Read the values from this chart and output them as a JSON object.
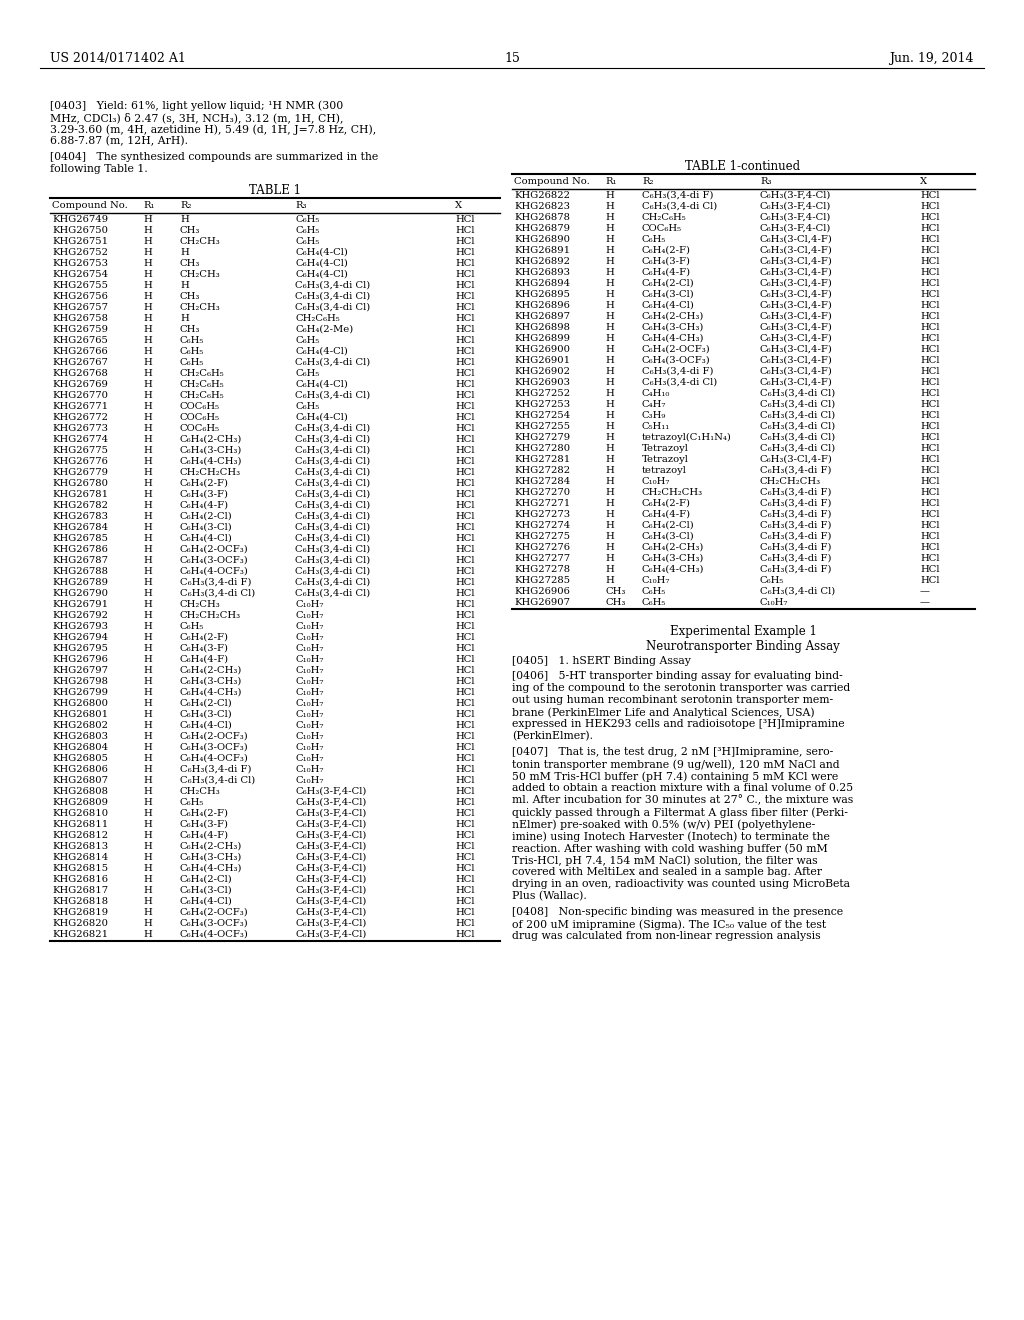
{
  "bg_color": "#ffffff",
  "header_left": "US 2014/0171402 A1",
  "header_right": "Jun. 19, 2014",
  "page_number": "15",
  "table1_title": "TABLE 1",
  "table1_headers": [
    "Compound No.",
    "R₁",
    "R₂",
    "R₃",
    "X"
  ],
  "table1_rows": [
    [
      "KHG26749",
      "H",
      "H",
      "C₆H₅",
      "HCl"
    ],
    [
      "KHG26750",
      "H",
      "CH₃",
      "C₆H₅",
      "HCl"
    ],
    [
      "KHG26751",
      "H",
      "CH₂CH₃",
      "C₆H₅",
      "HCl"
    ],
    [
      "KHG26752",
      "H",
      "H",
      "C₆H₄(4-Cl)",
      "HCl"
    ],
    [
      "KHG26753",
      "H",
      "CH₃",
      "C₆H₄(4-Cl)",
      "HCl"
    ],
    [
      "KHG26754",
      "H",
      "CH₂CH₃",
      "C₆H₄(4-Cl)",
      "HCl"
    ],
    [
      "KHG26755",
      "H",
      "H",
      "C₆H₃(3,4-di Cl)",
      "HCl"
    ],
    [
      "KHG26756",
      "H",
      "CH₃",
      "C₆H₃(3,4-di Cl)",
      "HCl"
    ],
    [
      "KHG26757",
      "H",
      "CH₂CH₃",
      "C₆H₃(3,4-di Cl)",
      "HCl"
    ],
    [
      "KHG26758",
      "H",
      "H",
      "CH₂C₆H₅",
      "HCl"
    ],
    [
      "KHG26759",
      "H",
      "CH₃",
      "C₆H₄(2-Me)",
      "HCl"
    ],
    [
      "KHG26765",
      "H",
      "C₆H₅",
      "C₆H₅",
      "HCl"
    ],
    [
      "KHG26766",
      "H",
      "C₆H₅",
      "C₆H₄(4-Cl)",
      "HCl"
    ],
    [
      "KHG26767",
      "H",
      "C₆H₅",
      "C₆H₃(3,4-di Cl)",
      "HCl"
    ],
    [
      "KHG26768",
      "H",
      "CH₂C₆H₅",
      "C₆H₅",
      "HCl"
    ],
    [
      "KHG26769",
      "H",
      "CH₂C₆H₅",
      "C₆H₄(4-Cl)",
      "HCl"
    ],
    [
      "KHG26770",
      "H",
      "CH₂C₆H₅",
      "C₆H₃(3,4-di Cl)",
      "HCl"
    ],
    [
      "KHG26771",
      "H",
      "COC₆H₅",
      "C₆H₅",
      "HCl"
    ],
    [
      "KHG26772",
      "H",
      "COC₆H₅",
      "C₆H₄(4-Cl)",
      "HCl"
    ],
    [
      "KHG26773",
      "H",
      "COC₆H₅",
      "C₆H₃(3,4-di Cl)",
      "HCl"
    ],
    [
      "KHG26774",
      "H",
      "C₆H₄(2-CH₃)",
      "C₆H₃(3,4-di Cl)",
      "HCl"
    ],
    [
      "KHG26775",
      "H",
      "C₆H₄(3-CH₃)",
      "C₆H₃(3,4-di Cl)",
      "HCl"
    ],
    [
      "KHG26776",
      "H",
      "C₆H₄(4-CH₃)",
      "C₆H₃(3,4-di Cl)",
      "HCl"
    ],
    [
      "KHG26779",
      "H",
      "CH₂CH₂CH₃",
      "C₆H₃(3,4-di Cl)",
      "HCl"
    ],
    [
      "KHG26780",
      "H",
      "C₆H₄(2-F)",
      "C₆H₃(3,4-di Cl)",
      "HCl"
    ],
    [
      "KHG26781",
      "H",
      "C₆H₄(3-F)",
      "C₆H₃(3,4-di Cl)",
      "HCl"
    ],
    [
      "KHG26782",
      "H",
      "C₆H₄(4-F)",
      "C₆H₃(3,4-di Cl)",
      "HCl"
    ],
    [
      "KHG26783",
      "H",
      "C₆H₄(2-Cl)",
      "C₆H₃(3,4-di Cl)",
      "HCl"
    ],
    [
      "KHG26784",
      "H",
      "C₆H₄(3-Cl)",
      "C₆H₃(3,4-di Cl)",
      "HCl"
    ],
    [
      "KHG26785",
      "H",
      "C₆H₄(4-Cl)",
      "C₆H₃(3,4-di Cl)",
      "HCl"
    ],
    [
      "KHG26786",
      "H",
      "C₆H₄(2-OCF₃)",
      "C₆H₃(3,4-di Cl)",
      "HCl"
    ],
    [
      "KHG26787",
      "H",
      "C₆H₄(3-OCF₃)",
      "C₆H₃(3,4-di Cl)",
      "HCl"
    ],
    [
      "KHG26788",
      "H",
      "C₆H₄(4-OCF₃)",
      "C₆H₃(3,4-di Cl)",
      "HCl"
    ],
    [
      "KHG26789",
      "H",
      "C₆H₃(3,4-di F)",
      "C₆H₃(3,4-di Cl)",
      "HCl"
    ],
    [
      "KHG26790",
      "H",
      "C₆H₃(3,4-di Cl)",
      "C₆H₃(3,4-di Cl)",
      "HCl"
    ],
    [
      "KHG26791",
      "H",
      "CH₂CH₃",
      "C₁₀H₇",
      "HCl"
    ],
    [
      "KHG26792",
      "H",
      "CH₂CH₂CH₃",
      "C₁₀H₇",
      "HCl"
    ],
    [
      "KHG26793",
      "H",
      "C₆H₅",
      "C₁₀H₇",
      "HCl"
    ],
    [
      "KHG26794",
      "H",
      "C₆H₄(2-F)",
      "C₁₀H₇",
      "HCl"
    ],
    [
      "KHG26795",
      "H",
      "C₆H₄(3-F)",
      "C₁₀H₇",
      "HCl"
    ],
    [
      "KHG26796",
      "H",
      "C₆H₄(4-F)",
      "C₁₀H₇",
      "HCl"
    ],
    [
      "KHG26797",
      "H",
      "C₆H₄(2-CH₃)",
      "C₁₀H₇",
      "HCl"
    ],
    [
      "KHG26798",
      "H",
      "C₆H₄(3-CH₃)",
      "C₁₀H₇",
      "HCl"
    ],
    [
      "KHG26799",
      "H",
      "C₆H₄(4-CH₃)",
      "C₁₀H₇",
      "HCl"
    ],
    [
      "KHG26800",
      "H",
      "C₆H₄(2-Cl)",
      "C₁₀H₇",
      "HCl"
    ],
    [
      "KHG26801",
      "H",
      "C₆H₄(3-Cl)",
      "C₁₀H₇",
      "HCl"
    ],
    [
      "KHG26802",
      "H",
      "C₆H₄(4-Cl)",
      "C₁₀H₇",
      "HCl"
    ],
    [
      "KHG26803",
      "H",
      "C₆H₄(2-OCF₃)",
      "C₁₀H₇",
      "HCl"
    ],
    [
      "KHG26804",
      "H",
      "C₆H₄(3-OCF₃)",
      "C₁₀H₇",
      "HCl"
    ],
    [
      "KHG26805",
      "H",
      "C₆H₄(4-OCF₃)",
      "C₁₀H₇",
      "HCl"
    ],
    [
      "KHG26806",
      "H",
      "C₆H₃(3,4-di F)",
      "C₁₀H₇",
      "HCl"
    ],
    [
      "KHG26807",
      "H",
      "C₆H₃(3,4-di Cl)",
      "C₁₀H₇",
      "HCl"
    ],
    [
      "KHG26808",
      "H",
      "CH₂CH₃",
      "C₆H₃(3-F,4-Cl)",
      "HCl"
    ],
    [
      "KHG26809",
      "H",
      "C₆H₅",
      "C₆H₃(3-F,4-Cl)",
      "HCl"
    ],
    [
      "KHG26810",
      "H",
      "C₆H₄(2-F)",
      "C₆H₃(3-F,4-Cl)",
      "HCl"
    ],
    [
      "KHG26811",
      "H",
      "C₆H₄(3-F)",
      "C₆H₃(3-F,4-Cl)",
      "HCl"
    ],
    [
      "KHG26812",
      "H",
      "C₆H₄(4-F)",
      "C₆H₃(3-F,4-Cl)",
      "HCl"
    ],
    [
      "KHG26813",
      "H",
      "C₆H₄(2-CH₃)",
      "C₆H₃(3-F,4-Cl)",
      "HCl"
    ],
    [
      "KHG26814",
      "H",
      "C₆H₄(3-CH₃)",
      "C₆H₃(3-F,4-Cl)",
      "HCl"
    ],
    [
      "KHG26815",
      "H",
      "C₆H₄(4-CH₃)",
      "C₆H₃(3-F,4-Cl)",
      "HCl"
    ],
    [
      "KHG26816",
      "H",
      "C₆H₄(2-Cl)",
      "C₆H₃(3-F,4-Cl)",
      "HCl"
    ],
    [
      "KHG26817",
      "H",
      "C₆H₄(3-Cl)",
      "C₆H₃(3-F,4-Cl)",
      "HCl"
    ],
    [
      "KHG26818",
      "H",
      "C₆H₄(4-Cl)",
      "C₆H₃(3-F,4-Cl)",
      "HCl"
    ],
    [
      "KHG26819",
      "H",
      "C₆H₄(2-OCF₃)",
      "C₆H₃(3-F,4-Cl)",
      "HCl"
    ],
    [
      "KHG26820",
      "H",
      "C₆H₄(3-OCF₃)",
      "C₆H₃(3-F,4-Cl)",
      "HCl"
    ],
    [
      "KHG26821",
      "H",
      "C₆H₄(4-OCF₃)",
      "C₆H₃(3-F,4-Cl)",
      "HCl"
    ]
  ],
  "table1cont_title": "TABLE 1-continued",
  "table1cont_headers": [
    "Compound No.",
    "R₁",
    "R₂",
    "R₃",
    "X"
  ],
  "table1cont_rows": [
    [
      "KHG26822",
      "H",
      "C₆H₃(3,4-di F)",
      "C₆H₃(3-F,4-Cl)",
      "HCl"
    ],
    [
      "KHG26823",
      "H",
      "C₆H₃(3,4-di Cl)",
      "C₆H₃(3-F,4-Cl)",
      "HCl"
    ],
    [
      "KHG26878",
      "H",
      "CH₂C₆H₅",
      "C₆H₃(3-F,4-Cl)",
      "HCl"
    ],
    [
      "KHG26879",
      "H",
      "COC₆H₅",
      "C₆H₃(3-F,4-Cl)",
      "HCl"
    ],
    [
      "KHG26890",
      "H",
      "C₆H₅",
      "C₆H₃(3-Cl,4-F)",
      "HCl"
    ],
    [
      "KHG26891",
      "H",
      "C₆H₄(2-F)",
      "C₆H₃(3-Cl,4-F)",
      "HCl"
    ],
    [
      "KHG26892",
      "H",
      "C₆H₄(3-F)",
      "C₆H₃(3-Cl,4-F)",
      "HCl"
    ],
    [
      "KHG26893",
      "H",
      "C₆H₄(4-F)",
      "C₆H₃(3-Cl,4-F)",
      "HCl"
    ],
    [
      "KHG26894",
      "H",
      "C₆H₄(2-Cl)",
      "C₆H₃(3-Cl,4-F)",
      "HCl"
    ],
    [
      "KHG26895",
      "H",
      "C₆H₄(3-Cl)",
      "C₆H₃(3-Cl,4-F)",
      "HCl"
    ],
    [
      "KHG26896",
      "H",
      "C₆H₄(4-Cl)",
      "C₆H₃(3-Cl,4-F)",
      "HCl"
    ],
    [
      "KHG26897",
      "H",
      "C₆H₄(2-CH₃)",
      "C₆H₃(3-Cl,4-F)",
      "HCl"
    ],
    [
      "KHG26898",
      "H",
      "C₆H₄(3-CH₃)",
      "C₆H₃(3-Cl,4-F)",
      "HCl"
    ],
    [
      "KHG26899",
      "H",
      "C₆H₄(4-CH₃)",
      "C₆H₃(3-Cl,4-F)",
      "HCl"
    ],
    [
      "KHG26900",
      "H",
      "C₆H₄(2-OCF₃)",
      "C₆H₃(3-Cl,4-F)",
      "HCl"
    ],
    [
      "KHG26901",
      "H",
      "C₆H₄(3-OCF₃)",
      "C₆H₃(3-Cl,4-F)",
      "HCl"
    ],
    [
      "KHG26902",
      "H",
      "C₆H₃(3,4-di F)",
      "C₆H₃(3-Cl,4-F)",
      "HCl"
    ],
    [
      "KHG26903",
      "H",
      "C₆H₃(3,4-di Cl)",
      "C₆H₃(3-Cl,4-F)",
      "HCl"
    ],
    [
      "KHG27252",
      "H",
      "C₄H₁₀",
      "C₆H₃(3,4-di Cl)",
      "HCl"
    ],
    [
      "KHG27253",
      "H",
      "C₄H₇",
      "C₆H₃(3,4-di Cl)",
      "HCl"
    ],
    [
      "KHG27254",
      "H",
      "C₃H₉",
      "C₆H₃(3,4-di Cl)",
      "HCl"
    ],
    [
      "KHG27255",
      "H",
      "C₅H₁₁",
      "C₆H₃(3,4-di Cl)",
      "HCl"
    ],
    [
      "KHG27279",
      "H",
      "tetrazoyl(C₁H₁N₄)",
      "C₆H₃(3,4-di Cl)",
      "HCl"
    ],
    [
      "KHG27280",
      "H",
      "Tetrazoyl",
      "C₆H₃(3,4-di Cl)",
      "HCl"
    ],
    [
      "KHG27281",
      "H",
      "Tetrazoyl",
      "C₆H₃(3-Cl,4-F)",
      "HCl"
    ],
    [
      "KHG27282",
      "H",
      "tetrazoyl",
      "C₆H₃(3,4-di F)",
      "HCl"
    ],
    [
      "KHG27284",
      "H",
      "C₁₀H₇",
      "CH₂CH₂CH₃",
      "HCl"
    ],
    [
      "KHG27270",
      "H",
      "CH₂CH₂CH₃",
      "C₆H₃(3,4-di F)",
      "HCl"
    ],
    [
      "KHG27271",
      "H",
      "C₆H₄(2-F)",
      "C₆H₃(3,4-di F)",
      "HCl"
    ],
    [
      "KHG27273",
      "H",
      "C₆H₄(4-F)",
      "C₆H₃(3,4-di F)",
      "HCl"
    ],
    [
      "KHG27274",
      "H",
      "C₆H₄(2-Cl)",
      "C₆H₃(3,4-di F)",
      "HCl"
    ],
    [
      "KHG27275",
      "H",
      "C₆H₄(3-Cl)",
      "C₆H₃(3,4-di F)",
      "HCl"
    ],
    [
      "KHG27276",
      "H",
      "C₆H₄(2-CH₃)",
      "C₆H₃(3,4-di F)",
      "HCl"
    ],
    [
      "KHG27277",
      "H",
      "C₆H₄(3-CH₃)",
      "C₆H₃(3,4-di F)",
      "HCl"
    ],
    [
      "KHG27278",
      "H",
      "C₆H₄(4-CH₃)",
      "C₆H₃(3,4-di F)",
      "HCl"
    ],
    [
      "KHG27285",
      "H",
      "C₁₀H₇",
      "C₆H₅",
      "HCl"
    ],
    [
      "KHG26906",
      "CH₃",
      "C₆H₅",
      "C₆H₃(3,4-di Cl)",
      "—"
    ],
    [
      "KHG26907",
      "CH₃",
      "C₆H₅",
      "C₁₀H₇",
      "—"
    ]
  ],
  "lines_0403": [
    "[0403]   Yield: 61%, light yellow liquid; ¹H NMR (300",
    "MHz, CDCl₃) δ 2.47 (s, 3H, NCH₃), 3.12 (m, 1H, CH),",
    "3.29-3.60 (m, 4H, azetidine H), 5.49 (d, 1H, J=7.8 Hz, CH),",
    "6.88-7.87 (m, 12H, ArH)."
  ],
  "lines_0404": [
    "[0404]   The synthesized compounds are summarized in the",
    "following Table 1."
  ],
  "lines_0406": [
    "[0406]   5-HT transporter binding assay for evaluating bind-",
    "ing of the compound to the serotonin transporter was carried",
    "out using human recombinant serotonin transporter mem-",
    "brane (PerkinElmer Life and Analytical Sciences, USA)",
    "expressed in HEK293 cells and radioisotope [³H]Imipramine",
    "(PerkinElmer)."
  ],
  "lines_0407": [
    "[0407]   That is, the test drug, 2 nM [³H]Imipramine, sero-",
    "tonin transporter membrane (9 ug/well), 120 mM NaCl and",
    "50 mM Tris-HCl buffer (pH 7.4) containing 5 mM KCl were",
    "added to obtain a reaction mixture with a final volume of 0.25",
    "ml. After incubation for 30 minutes at 27° C., the mixture was",
    "quickly passed through a Filtermat A glass fiber filter (Perki-",
    "nElmer) pre-soaked with 0.5% (w/v) PEI (polyethylene-",
    "imine) using Inotech Harvester (Inotech) to terminate the",
    "reaction. After washing with cold washing buffer (50 mM",
    "Tris-HCl, pH 7.4, 154 mM NaCl) solution, the filter was",
    "covered with MeltiLex and sealed in a sample bag. After",
    "drying in an oven, radioactivity was counted using MicroBeta",
    "Plus (Wallac)."
  ],
  "lines_0408": [
    "[0408]   Non-specific binding was measured in the presence",
    "of 200 uM imipramine (Sigma). The IC₅₀ value of the test",
    "drug was calculated from non-linear regression analysis"
  ],
  "exp_example1_title": "Experimental Example 1",
  "exp_example1_subtitle": "Neurotransporter Binding Assay",
  "para_0405": "[0405]   1. hSERT Binding Assay"
}
